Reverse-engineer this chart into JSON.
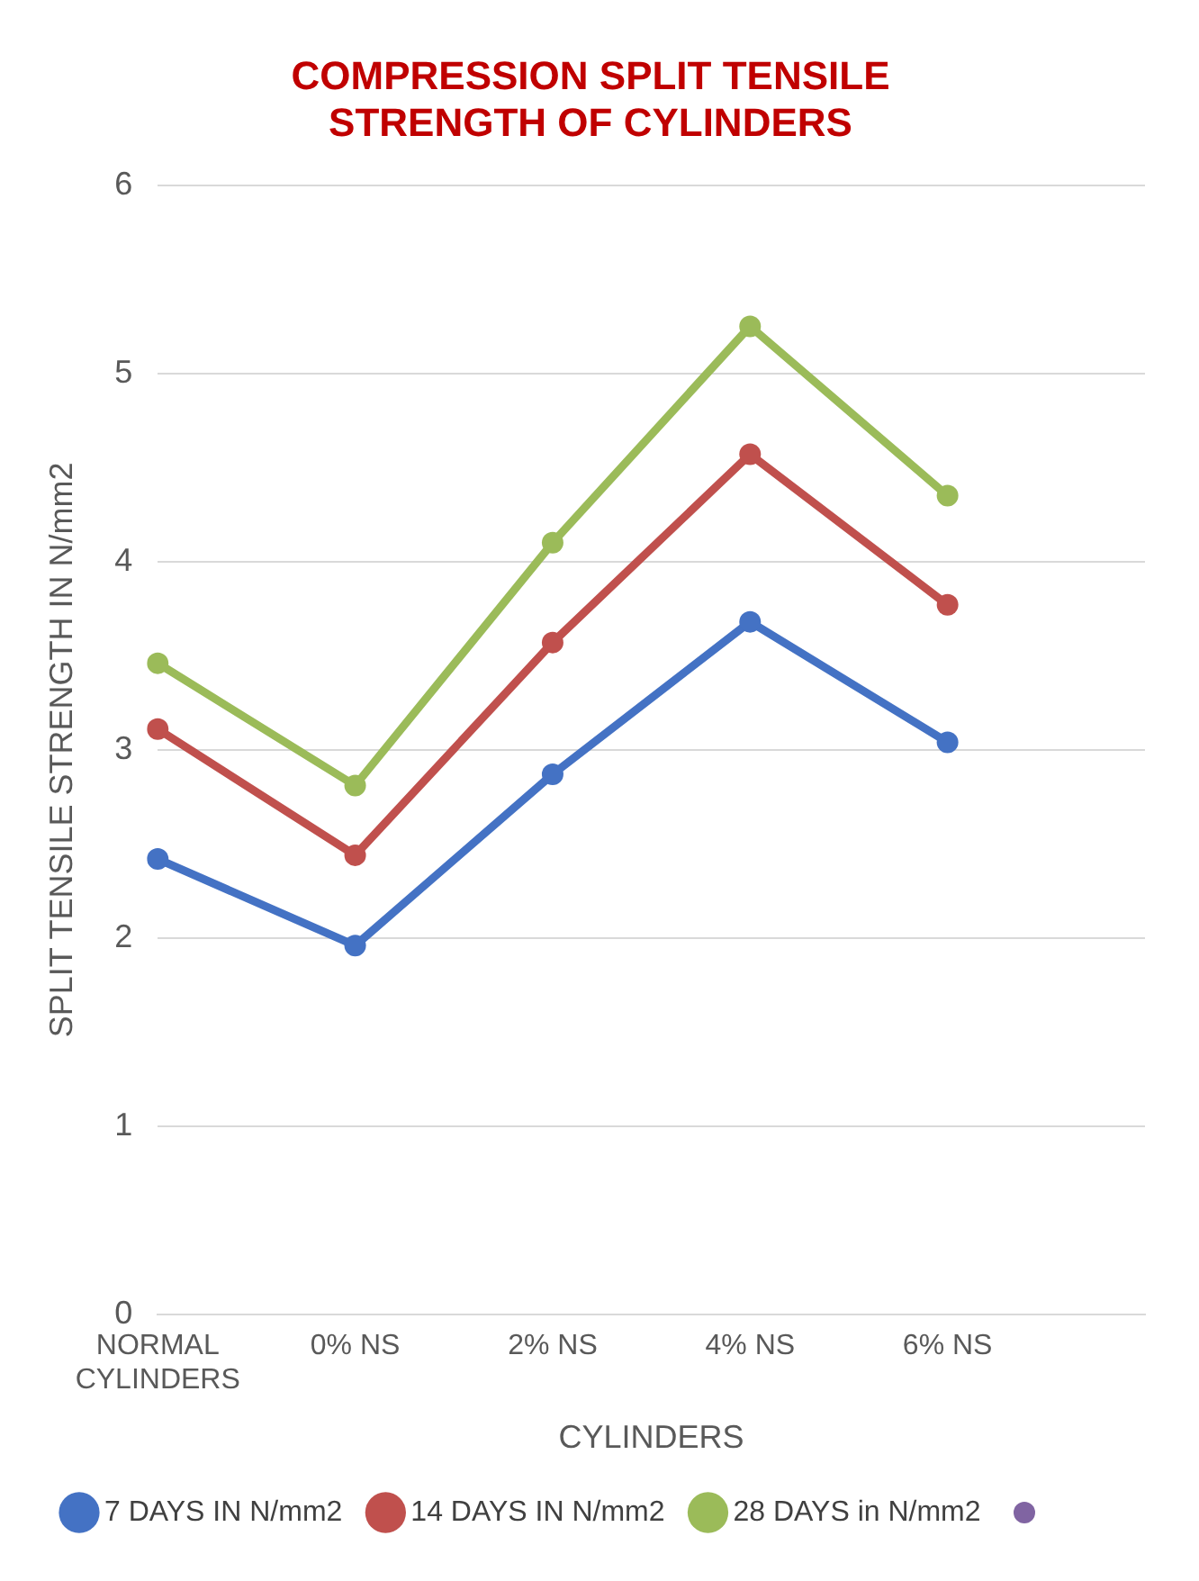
{
  "chart_data": {
    "type": "line",
    "title": "COMPRESSION SPLIT TENSILE STRENGTH OF CYLINDERS",
    "xlabel": "CYLINDERS",
    "ylabel": "SPLIT TENSILE STRENGTH IN N/mm2",
    "categories": [
      "NORMAL CYLINDERS",
      "0% NS",
      "2% NS",
      "4% NS",
      "6% NS",
      null
    ],
    "series": [
      {
        "name": "7 DAYS IN N/mm2",
        "color": "#4472c4",
        "values": [
          2.42,
          1.96,
          2.87,
          3.68,
          3.04,
          null
        ]
      },
      {
        "name": "14 DAYS IN N/mm2",
        "color": "#c0504d",
        "values": [
          3.11,
          2.44,
          3.57,
          4.57,
          3.77,
          null
        ]
      },
      {
        "name": "28 DAYS in N/mm2",
        "color": "#9bbb59",
        "values": [
          3.46,
          2.81,
          4.1,
          5.25,
          4.35,
          null
        ]
      },
      {
        "color": "#8064a2",
        "values": [
          null,
          null,
          null,
          null,
          null,
          null
        ]
      }
    ],
    "ylim": [
      0,
      6
    ],
    "yticks": [
      0,
      1,
      2,
      3,
      4,
      5,
      6
    ],
    "grid": "y",
    "legend": "bottom",
    "marker": "circle",
    "line_style": "solid"
  }
}
